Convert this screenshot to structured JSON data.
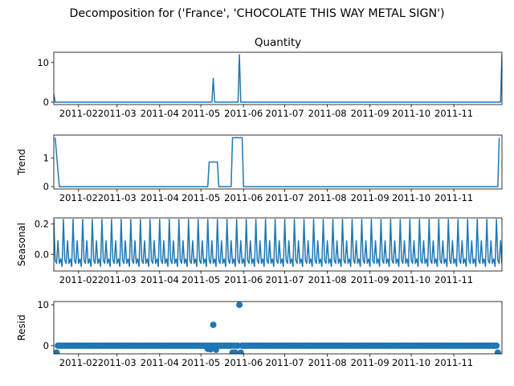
{
  "figure": {
    "suptitle": "Decomposition for ('France', 'CHOCOLATE THIS WAY METAL SIGN')",
    "line_color": "#1f77b4"
  },
  "chart_data": [
    {
      "type": "line",
      "title": "Quantity",
      "ylabel": "",
      "xlim": [
        "2011-01-14",
        "2011-12-06"
      ],
      "ylim": [
        -0.6,
        12.6
      ],
      "yticks": [
        "0",
        "10"
      ],
      "xticks": [
        "2011-02",
        "2011-03",
        "2011-04",
        "2011-05",
        "2011-06",
        "2011-07",
        "2011-08",
        "2011-09",
        "2011-10",
        "2011-11"
      ],
      "x": [
        "2011-01-14",
        "2011-01-15",
        "2011-05-09",
        "2011-05-10",
        "2011-05-11",
        "2011-05-28",
        "2011-05-29",
        "2011-05-30",
        "2011-12-05",
        "2011-12-06"
      ],
      "values": [
        2,
        0,
        0,
        6,
        0,
        0,
        12,
        0,
        0,
        12
      ]
    },
    {
      "type": "line",
      "title": "",
      "ylabel": "Trend",
      "xlim": [
        "2011-01-14",
        "2011-12-06"
      ],
      "ylim": [
        -0.08,
        1.8
      ],
      "yticks": [
        "0",
        "1"
      ],
      "xticks": [
        "2011-02",
        "2011-03",
        "2011-04",
        "2011-05",
        "2011-06",
        "2011-07",
        "2011-08",
        "2011-09",
        "2011-10",
        "2011-11"
      ],
      "x": [
        "2011-01-15",
        "2011-01-18",
        "2011-05-06",
        "2011-05-07",
        "2011-05-13",
        "2011-05-14",
        "2011-05-23",
        "2011-05-24",
        "2011-05-31",
        "2011-06-01",
        "2011-12-03",
        "2011-12-04"
      ],
      "values": [
        1.71,
        0,
        0,
        0.86,
        0.86,
        0,
        0,
        1.71,
        1.71,
        0,
        0,
        1.71
      ]
    },
    {
      "type": "line",
      "title": "",
      "ylabel": "Seasonal",
      "xlim": [
        "2011-01-14",
        "2011-12-06"
      ],
      "ylim": [
        -0.11,
        0.24
      ],
      "yticks": [
        "0.0",
        "0.2"
      ],
      "xticks": [
        "2011-02",
        "2011-03",
        "2011-04",
        "2011-05",
        "2011-06",
        "2011-07",
        "2011-08",
        "2011-09",
        "2011-10",
        "2011-11"
      ],
      "start": "2011-01-14",
      "end": "2011-12-06",
      "period_pattern": [
        0.23,
        -0.04,
        -0.06,
        0.09,
        -0.06,
        -0.03,
        -0.08
      ]
    },
    {
      "type": "scatter",
      "title": "",
      "ylabel": "Resid",
      "xlim": [
        "2011-01-14",
        "2011-12-06"
      ],
      "ylim": [
        -2.0,
        10.8
      ],
      "yticks": [
        "0",
        "10"
      ],
      "xticks": [
        "2011-02",
        "2011-03",
        "2011-04",
        "2011-05",
        "2011-06",
        "2011-07",
        "2011-08",
        "2011-09",
        "2011-10",
        "2011-11"
      ],
      "start": "2011-01-16",
      "end": "2011-12-03",
      "baseline": 0,
      "special_points": [
        {
          "x": "2011-01-16",
          "y": -1.7
        },
        {
          "x": "2011-05-06",
          "y": -0.8
        },
        {
          "x": "2011-05-08",
          "y": -0.9
        },
        {
          "x": "2011-05-10",
          "y": 5.1
        },
        {
          "x": "2011-05-12",
          "y": -1.0
        },
        {
          "x": "2011-05-24",
          "y": -1.7
        },
        {
          "x": "2011-05-26",
          "y": -1.7
        },
        {
          "x": "2011-05-29",
          "y": 10.0
        },
        {
          "x": "2011-05-30",
          "y": -1.7
        },
        {
          "x": "2011-12-03",
          "y": -1.7
        }
      ]
    }
  ]
}
